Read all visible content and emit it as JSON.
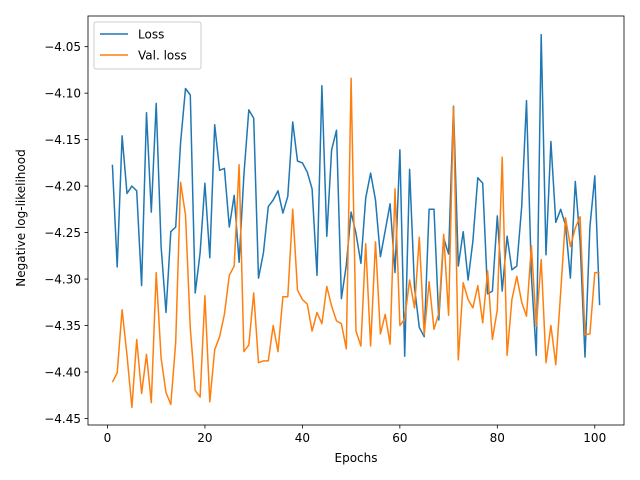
{
  "chart_data": {
    "type": "line",
    "xlabel": "Epochs",
    "ylabel": "Negative log-likelihood",
    "xlim": [
      -4,
      106
    ],
    "ylim": [
      -4.457,
      -4.017
    ],
    "xticks": [
      0,
      20,
      40,
      60,
      80,
      100
    ],
    "xtick_labels": [
      "0",
      "20",
      "40",
      "60",
      "80",
      "100"
    ],
    "yticks": [
      -4.45,
      -4.4,
      -4.35,
      -4.3,
      -4.25,
      -4.2,
      -4.15,
      -4.1,
      -4.05
    ],
    "ytick_labels": [
      "−4.45",
      "−4.40",
      "−4.35",
      "−4.30",
      "−4.25",
      "−4.20",
      "−4.15",
      "−4.10",
      "−4.05"
    ],
    "grid": false,
    "legend_position": "top-left",
    "x": [
      1,
      2,
      3,
      4,
      5,
      6,
      7,
      8,
      9,
      10,
      11,
      12,
      13,
      14,
      15,
      16,
      17,
      18,
      19,
      20,
      21,
      22,
      23,
      24,
      25,
      26,
      27,
      28,
      29,
      30,
      31,
      32,
      33,
      34,
      35,
      36,
      37,
      38,
      39,
      40,
      41,
      42,
      43,
      44,
      45,
      46,
      47,
      48,
      49,
      50,
      51,
      52,
      53,
      54,
      55,
      56,
      57,
      58,
      59,
      60,
      61,
      62,
      63,
      64,
      65,
      66,
      67,
      68,
      69,
      70,
      71,
      72,
      73,
      74,
      75,
      76,
      77,
      78,
      79,
      80,
      81,
      82,
      83,
      84,
      85,
      86,
      87,
      88,
      89,
      90,
      91,
      92,
      93,
      94,
      95,
      96,
      97,
      98,
      99,
      100,
      101
    ],
    "series": [
      {
        "name": "Loss",
        "color": "#1f77b4",
        "values": [
          -4.177,
          -4.287,
          -4.146,
          -4.208,
          -4.2,
          -4.205,
          -4.307,
          -4.121,
          -4.228,
          -4.111,
          -4.265,
          -4.336,
          -4.249,
          -4.244,
          -4.153,
          -4.095,
          -4.102,
          -4.315,
          -4.272,
          -4.197,
          -4.277,
          -4.134,
          -4.183,
          -4.181,
          -4.244,
          -4.21,
          -4.282,
          -4.188,
          -4.118,
          -4.127,
          -4.299,
          -4.272,
          -4.222,
          -4.215,
          -4.205,
          -4.229,
          -4.211,
          -4.131,
          -4.173,
          -4.175,
          -4.185,
          -4.203,
          -4.296,
          -4.092,
          -4.254,
          -4.161,
          -4.14,
          -4.321,
          -4.285,
          -4.228,
          -4.251,
          -4.283,
          -4.213,
          -4.186,
          -4.215,
          -4.276,
          -4.248,
          -4.219,
          -4.293,
          -4.161,
          -4.383,
          -4.182,
          -4.309,
          -4.352,
          -4.362,
          -4.225,
          -4.225,
          -4.344,
          -4.256,
          -4.273,
          -4.114,
          -4.286,
          -4.249,
          -4.301,
          -4.259,
          -4.191,
          -4.197,
          -4.316,
          -4.313,
          -4.232,
          -4.313,
          -4.254,
          -4.29,
          -4.286,
          -4.222,
          -4.108,
          -4.297,
          -4.382,
          -4.037,
          -4.274,
          -4.152,
          -4.239,
          -4.225,
          -4.242,
          -4.299,
          -4.195,
          -4.26,
          -4.384,
          -4.244,
          -4.189,
          -4.328
        ]
      },
      {
        "name": "Val. loss",
        "color": "#ff7f0e",
        "values": [
          -4.411,
          -4.401,
          -4.333,
          -4.382,
          -4.438,
          -4.365,
          -4.423,
          -4.381,
          -4.433,
          -4.293,
          -4.385,
          -4.422,
          -4.435,
          -4.368,
          -4.196,
          -4.231,
          -4.353,
          -4.42,
          -4.427,
          -4.318,
          -4.432,
          -4.376,
          -4.362,
          -4.338,
          -4.296,
          -4.286,
          -4.177,
          -4.378,
          -4.371,
          -4.315,
          -4.39,
          -4.388,
          -4.388,
          -4.35,
          -4.378,
          -4.319,
          -4.319,
          -4.225,
          -4.312,
          -4.322,
          -4.327,
          -4.356,
          -4.336,
          -4.348,
          -4.308,
          -4.329,
          -4.345,
          -4.348,
          -4.375,
          -4.084,
          -4.356,
          -4.372,
          -4.262,
          -4.372,
          -4.26,
          -4.359,
          -4.338,
          -4.37,
          -4.203,
          -4.35,
          -4.343,
          -4.301,
          -4.331,
          -4.255,
          -4.36,
          -4.303,
          -4.354,
          -4.337,
          -4.252,
          -4.339,
          -4.115,
          -4.387,
          -4.304,
          -4.322,
          -4.331,
          -4.307,
          -4.347,
          -4.291,
          -4.365,
          -4.333,
          -4.169,
          -4.382,
          -4.322,
          -4.297,
          -4.325,
          -4.34,
          -4.264,
          -4.351,
          -4.279,
          -4.39,
          -4.35,
          -4.392,
          -4.314,
          -4.234,
          -4.265,
          -4.245,
          -4.233,
          -4.36,
          -4.359,
          -4.293,
          -4.293
        ]
      }
    ]
  }
}
